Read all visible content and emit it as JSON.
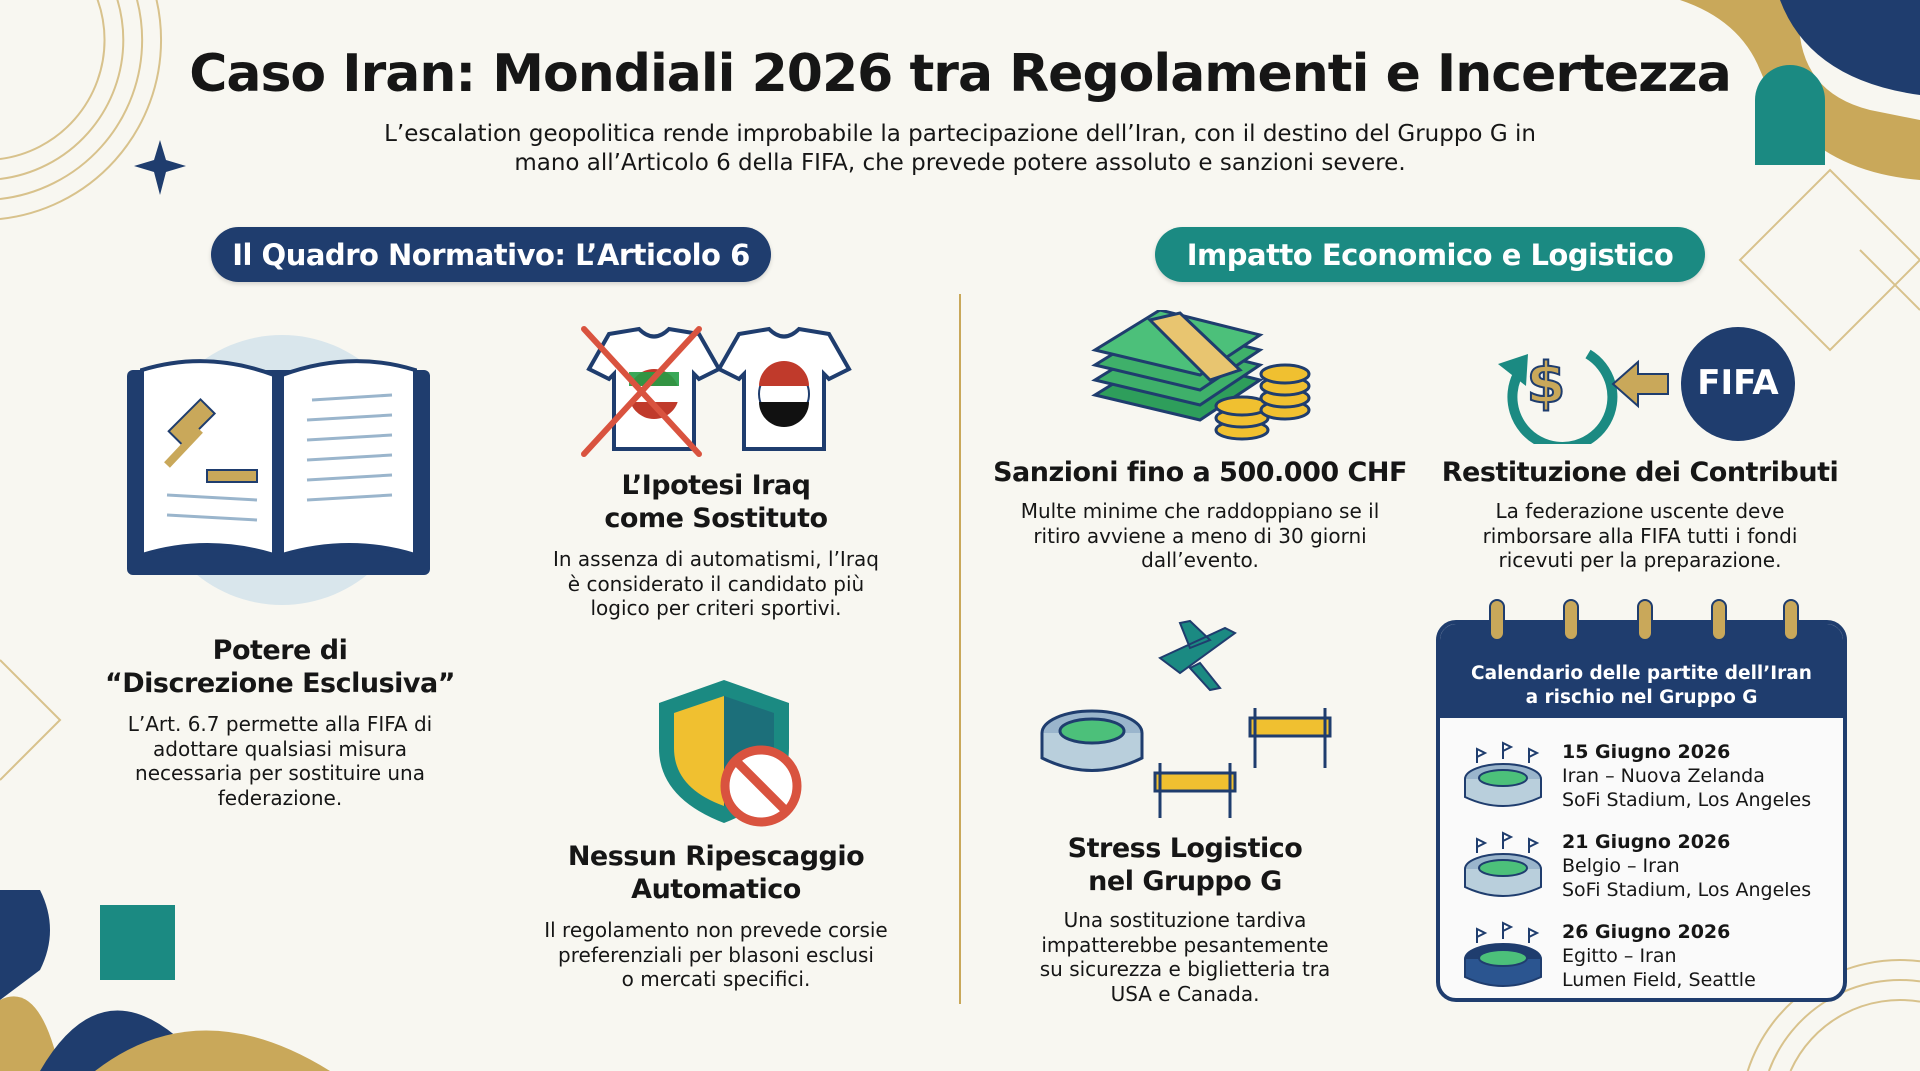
{
  "header": {
    "title": "Caso Iran: Mondiali 2026 tra Regolamenti e Incertezza",
    "subtitle_line1": "L’escalation geopolitica rende improbabile la partecipazione dell’Iran, con il destino del Gruppo G in",
    "subtitle_line2": "mano all’Articolo 6 della FIFA, che prevede potere assoluto e sanzioni severe."
  },
  "colors": {
    "navy": "#1f3d6e",
    "teal": "#1b8a82",
    "gold": "#c9a85a",
    "background": "#f8f7f1"
  },
  "left": {
    "section_title": "Il Quadro Normativo: L’Articolo 6",
    "cards": [
      {
        "icon": "law-book-gavel-icon",
        "title1": "Potere di",
        "title2": "“Discrezione Esclusiva”",
        "body1": "L’Art. 6.7 permette alla FIFA di",
        "body2": "adottare qualsiasi misura",
        "body3": "necessaria per sostituire una",
        "body4": "federazione."
      },
      {
        "icon": "jerseys-swap-icon",
        "title1": "L’Ipotesi Iraq",
        "title2": "come Sostituto",
        "body1": "In assenza di automatismi, l’Iraq",
        "body2": "è considerato il candidato più",
        "body3": "logico per criteri sportivi."
      },
      {
        "icon": "shield-prohibited-icon",
        "title1": "Nessun Ripescaggio",
        "title2": "Automatico",
        "body1": "Il regolamento non prevede corsie",
        "body2": "preferenziali per blasoni esclusi",
        "body3": "o mercati specifici."
      }
    ]
  },
  "right": {
    "section_title": "Impatto Economico e Logistico",
    "cards": [
      {
        "icon": "money-coins-icon",
        "title1": "Sanzioni fino a 500.000 CHF",
        "body1": "Multe minime che raddoppiano se il",
        "body2": "ritiro avviene a meno di 30 giorni",
        "body3": "dall’evento."
      },
      {
        "icon": "refund-fifa-icon",
        "badge": "FIFA",
        "title1": "Restituzione dei Contributi",
        "body1": "La federazione uscente deve",
        "body2": "rimborsare alla FIFA tutti i fondi",
        "body3": "ricevuti per la preparazione."
      },
      {
        "icon": "logistics-stadium-plane-icon",
        "title1": "Stress Logistico",
        "title2": "nel Gruppo G",
        "body1": "Una sostituzione tardiva",
        "body2": "impatterebbe pesantemente",
        "body3": "su sicurezza e biglietteria tra",
        "body4": "USA e Canada."
      }
    ],
    "calendar": {
      "title1": "Calendario delle partite dell’Iran",
      "title2": "a rischio nel Gruppo G",
      "matches": [
        {
          "date": "15 Giugno 2026",
          "teams": "Iran – Nuova Zelanda",
          "venue": "SoFi Stadium, Los Angeles"
        },
        {
          "date": "21 Giugno 2026",
          "teams": "Belgio – Iran",
          "venue": "SoFi Stadium, Los Angeles"
        },
        {
          "date": "26 Giugno 2026",
          "teams": "Egitto – Iran",
          "venue": "Lumen Field, Seattle"
        }
      ]
    }
  }
}
